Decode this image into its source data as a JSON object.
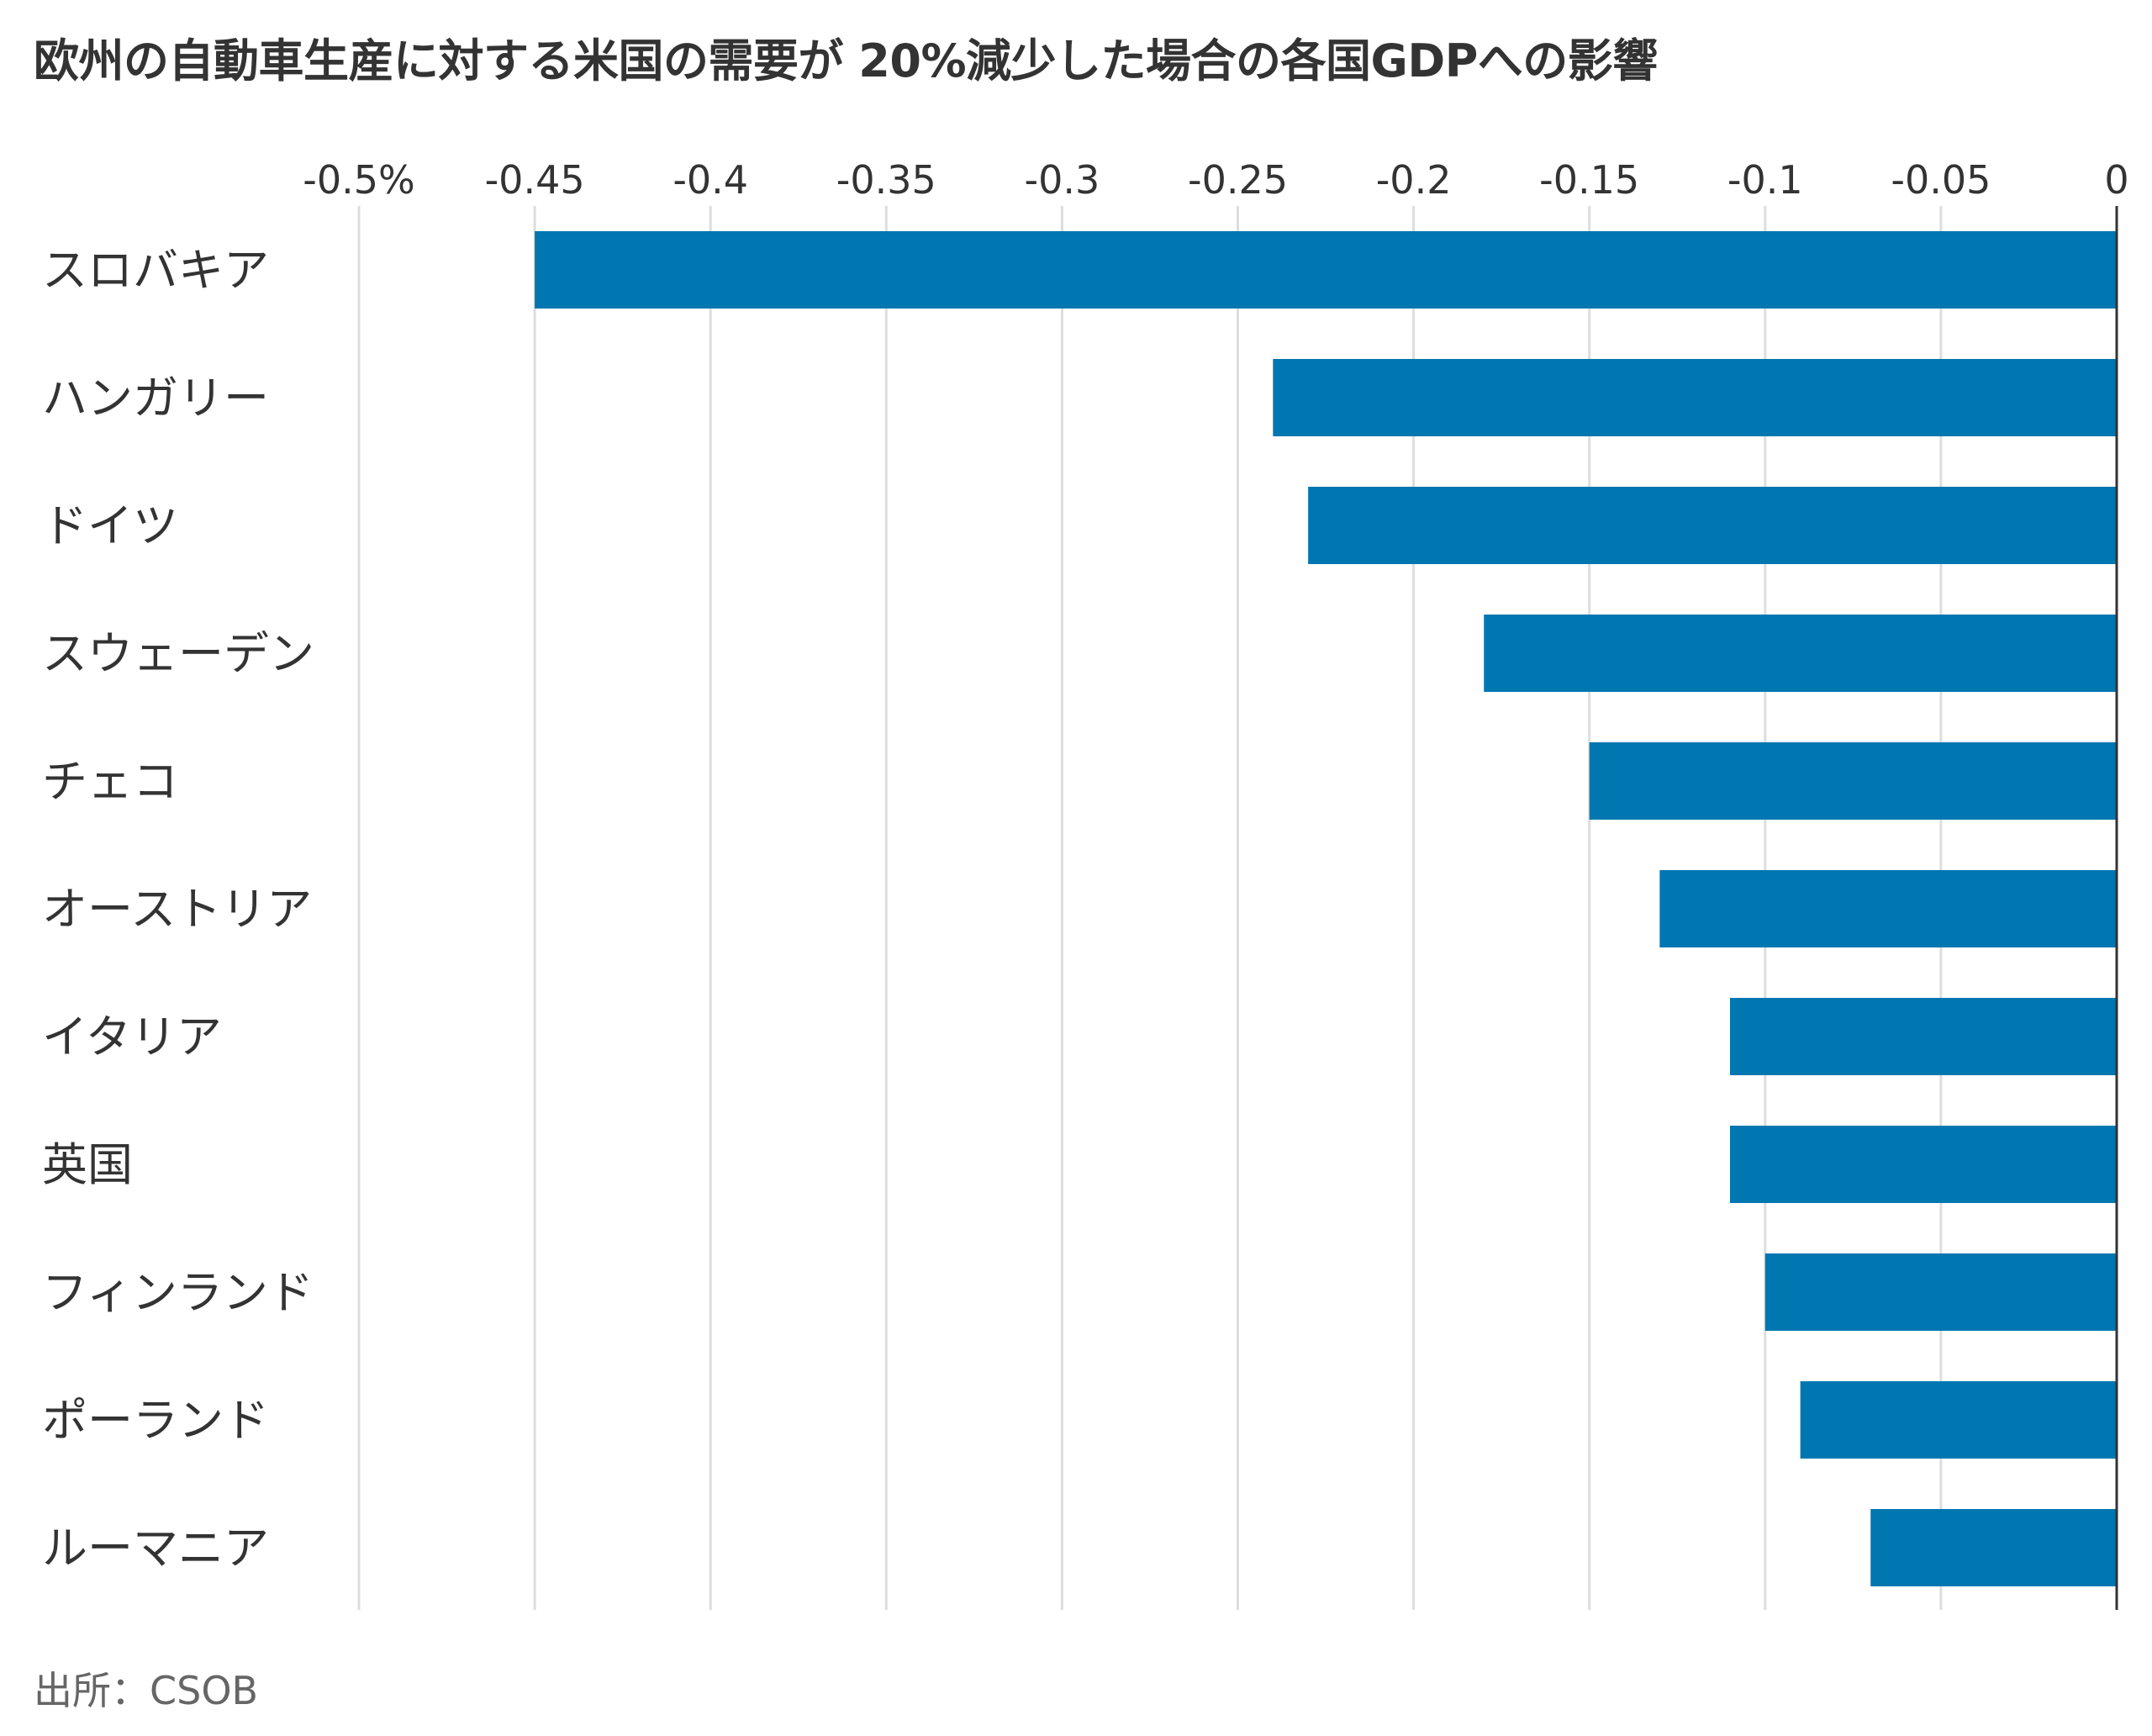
{
  "chart_data": {
    "type": "bar",
    "orientation": "horizontal",
    "title": "欧州の自動車生産に対する米国の需要が 20%減少した場合の各国GDPへの影響",
    "source": "出所：CSOB",
    "categories": [
      "スロバキア",
      "ハンガリー",
      "ドイツ",
      "スウェーデン",
      "チェコ",
      "オーストリア",
      "イタリア",
      "英国",
      "フィンランド",
      "ポーランド",
      "ルーマニア"
    ],
    "values": [
      -0.45,
      -0.24,
      -0.23,
      -0.18,
      -0.15,
      -0.13,
      -0.11,
      -0.11,
      -0.1,
      -0.09,
      -0.07
    ],
    "x_ticks": [
      "-0.5%",
      "-0.45",
      "-0.4",
      "-0.35",
      "-0.3",
      "-0.25",
      "-0.2",
      "-0.15",
      "-0.1",
      "-0.05",
      "0"
    ],
    "x_tick_values": [
      -0.5,
      -0.45,
      -0.4,
      -0.35,
      -0.3,
      -0.25,
      -0.2,
      -0.15,
      -0.1,
      -0.05,
      0
    ],
    "xlim": [
      -0.5,
      0
    ],
    "grid": true,
    "legend": "none",
    "bar_color": "#0077B0",
    "grid_color": "#dddddd",
    "axis_color": "#333333"
  }
}
